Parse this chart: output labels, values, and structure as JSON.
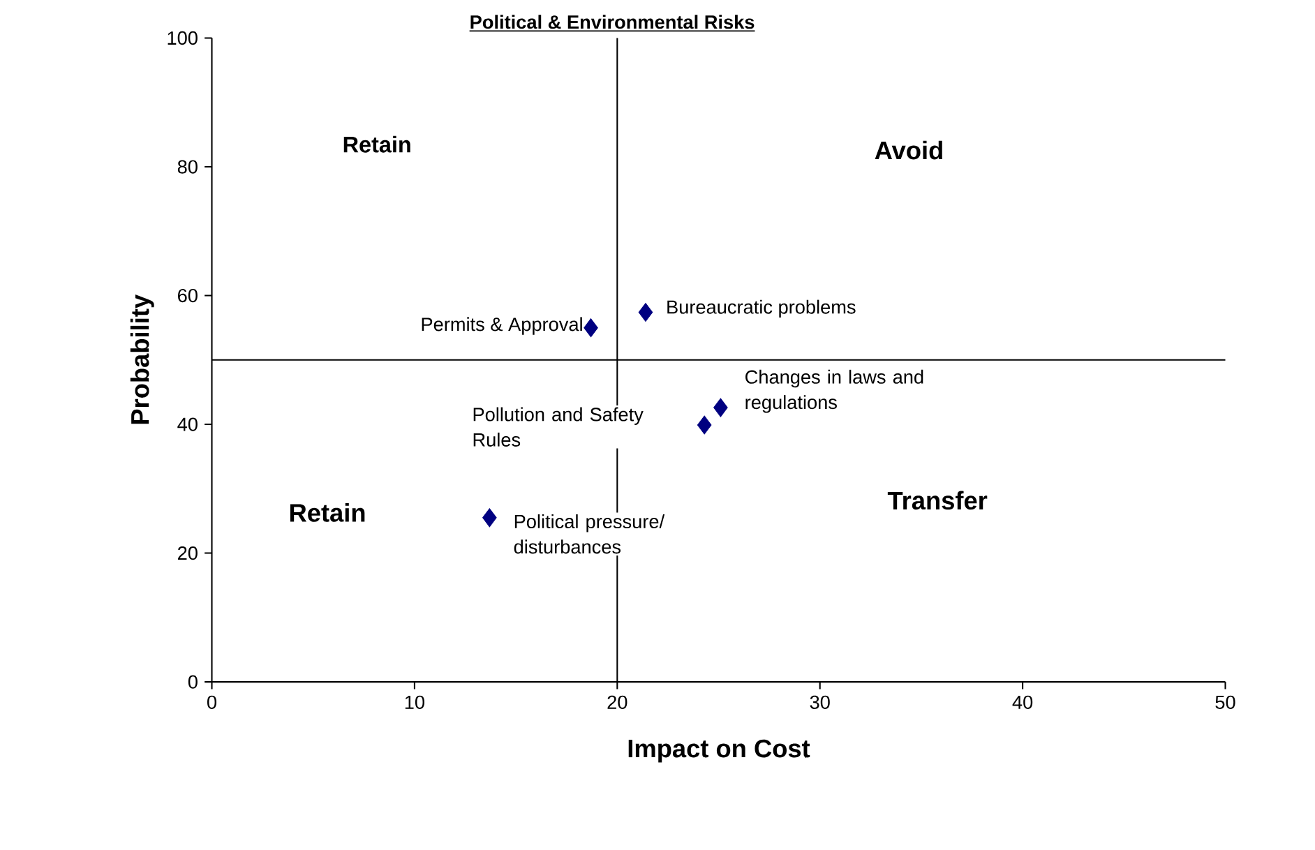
{
  "chart_data": {
    "type": "scatter",
    "title": "Political & Environmental Risks",
    "xlabel": "Impact on Cost",
    "ylabel": "Probability",
    "xlim": [
      0,
      50
    ],
    "ylim": [
      0,
      100
    ],
    "xticks": [
      0,
      10,
      20,
      30,
      40,
      50
    ],
    "yticks": [
      0,
      20,
      40,
      60,
      80,
      100
    ],
    "marker": "diamond",
    "grid": false,
    "legend": false,
    "series": [
      {
        "name": "Permits & Approval",
        "color": "#000080",
        "x": [
          18.7
        ],
        "values": [
          55
        ]
      },
      {
        "name": "Bureaucratic problems",
        "color": "#000080",
        "x": [
          21.4
        ],
        "values": [
          57.4
        ]
      },
      {
        "name": "Pollution and Safety Rules",
        "color": "#000080",
        "x": [
          24.3
        ],
        "values": [
          39.9
        ]
      },
      {
        "name": "Changes in laws and regulations",
        "color": "#000080",
        "x": [
          25.1
        ],
        "values": [
          42.6
        ]
      },
      {
        "name": "Political pressure/ disturbances",
        "color": "#000080",
        "x": [
          13.7
        ],
        "values": [
          25.5
        ]
      }
    ],
    "ref_lines": [
      {
        "axis": "x",
        "value": 20,
        "color": "#000000"
      },
      {
        "axis": "y",
        "value": 50,
        "color": "#000000"
      }
    ],
    "annotations": [
      "Retain",
      "Avoid",
      "Retain",
      "Transfer"
    ]
  }
}
